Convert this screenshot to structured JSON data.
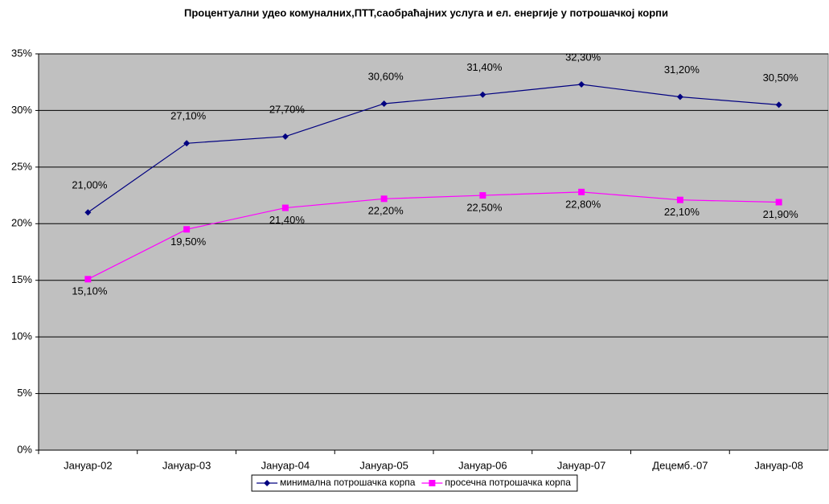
{
  "chart_data": {
    "type": "line",
    "title": "Процентуални удео комуналних,ПТТ,саобраћајних услуга и ел. енергије у потрошачкој корпи",
    "categories": [
      "Јануар-02",
      "Јануар-03",
      "Јануар-04",
      "Јануар-05",
      "Јануар-06",
      "Јануар-07",
      "Децемб.-07",
      "Јануар-08"
    ],
    "series": [
      {
        "name": "минимална потрошачка корпа",
        "color": "#000080",
        "marker": "diamond",
        "values": [
          21.0,
          27.1,
          27.7,
          30.6,
          31.4,
          32.3,
          31.2,
          30.5
        ],
        "value_labels": [
          "21,00%",
          "27,10%",
          "27,70%",
          "30,60%",
          "31,40%",
          "32,30%",
          "31,20%",
          "30,50%"
        ]
      },
      {
        "name": "просечна потрошачка корпа",
        "color": "#ff00ff",
        "marker": "square",
        "values": [
          15.1,
          19.5,
          21.4,
          22.2,
          22.5,
          22.8,
          22.1,
          21.9
        ],
        "value_labels": [
          "15,10%",
          "19,50%",
          "21,40%",
          "22,20%",
          "22,50%",
          "22,80%",
          "22,10%",
          "21,90%"
        ]
      }
    ],
    "ylim": [
      0,
      35
    ],
    "yticks": [
      {
        "value": 0,
        "label": "0%"
      },
      {
        "value": 5,
        "label": "5%"
      },
      {
        "value": 10,
        "label": "10%"
      },
      {
        "value": 15,
        "label": "15%"
      },
      {
        "value": 20,
        "label": "20%"
      },
      {
        "value": 25,
        "label": "25%"
      },
      {
        "value": 30,
        "label": "30%"
      },
      {
        "value": 35,
        "label": "35%"
      }
    ],
    "grid": true,
    "legend": "bottom",
    "background": "#c0c0c0"
  }
}
